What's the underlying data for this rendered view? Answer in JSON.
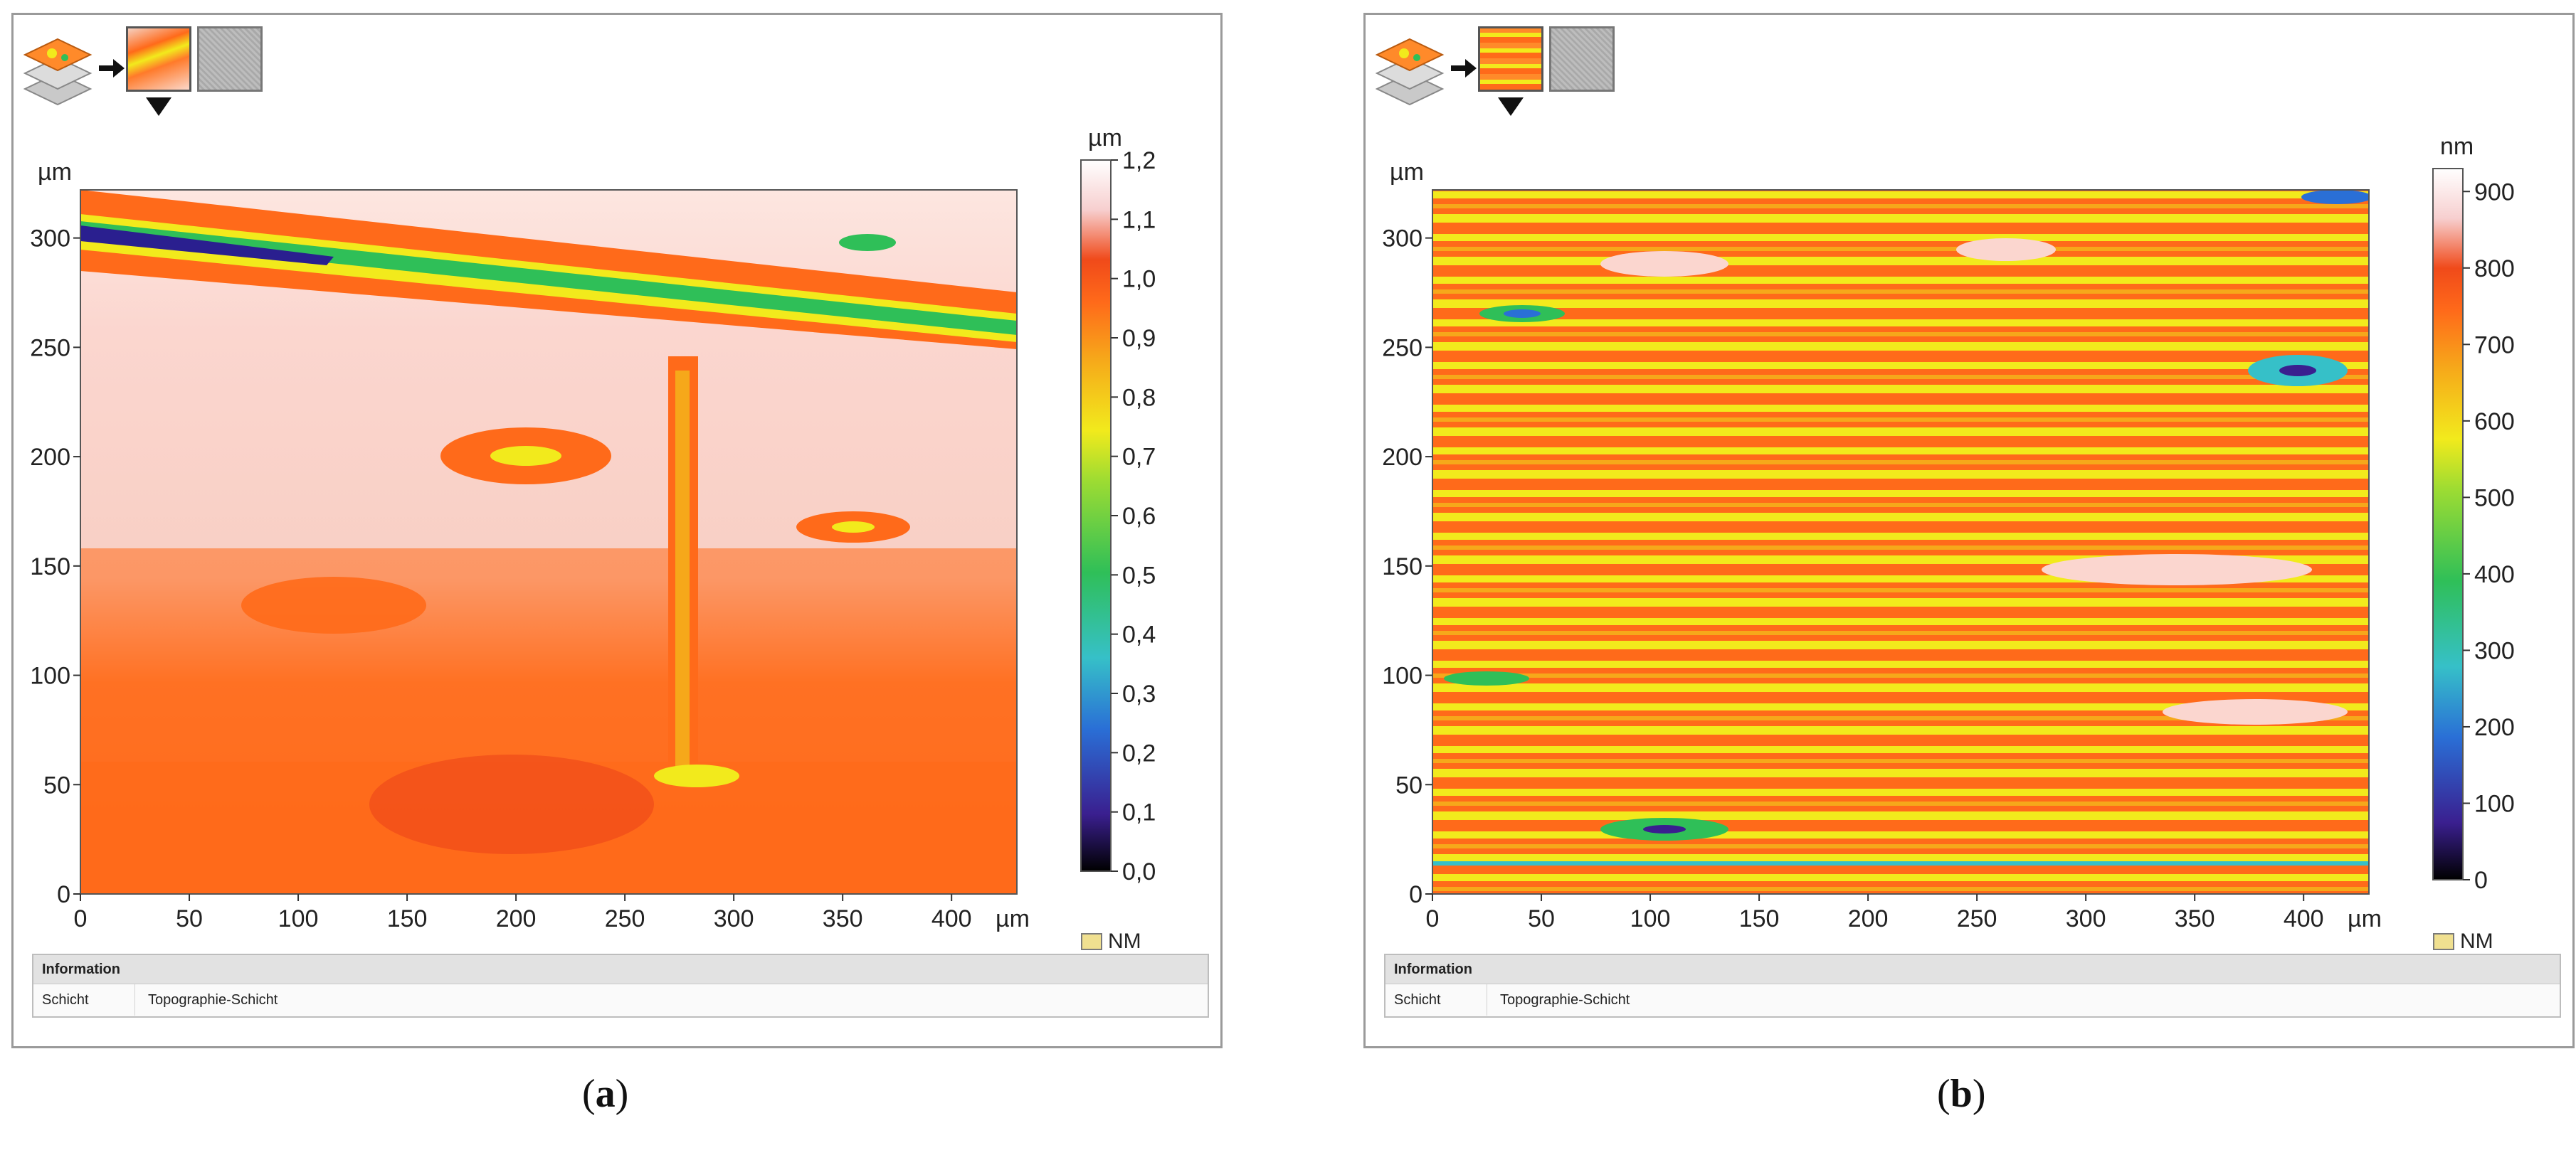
{
  "colors": {
    "scale_stops": [
      "#000000",
      "#3a1f8f",
      "#2a6fd6",
      "#36c0c8",
      "#2fbf58",
      "#9edc32",
      "#f2ea1c",
      "#f6a81a",
      "#ff6a1a",
      "#f04a1a",
      "#f7cfcf",
      "#ffffff"
    ]
  },
  "toolbar": {
    "layer_icon": "layers-icon",
    "arrow_icon": "arrow-right-icon",
    "thumb_topo": "topography-thumbnail",
    "thumb_gray": "grayscale-thumbnail",
    "caret_icon": "dropdown-caret-icon"
  },
  "panels": [
    {
      "caption_label": "a",
      "info": {
        "header": "Information",
        "key": "Schicht",
        "value": "Topographie-Schicht"
      },
      "nm_label": "NM",
      "chart_data": {
        "type": "heatmap",
        "axis_unit_x": "µm",
        "axis_unit_y": "µm",
        "x_ticks": [
          "0",
          "50",
          "100",
          "150",
          "200",
          "250",
          "300",
          "350",
          "400"
        ],
        "y_ticks": [
          "0",
          "50",
          "100",
          "150",
          "200",
          "250",
          "300"
        ],
        "xlim": [
          0,
          430
        ],
        "ylim": [
          0,
          322
        ],
        "colorbar_unit": "µm",
        "colorbar_ticks": [
          "0,0",
          "0,1",
          "0,2",
          "0,3",
          "0,4",
          "0,5",
          "0,6",
          "0,7",
          "0,8",
          "0,9",
          "1,0",
          "1,1",
          "1,2"
        ],
        "colorbar_range": [
          0.0,
          1.2
        ]
      }
    },
    {
      "caption_label": "b",
      "info": {
        "header": "Information",
        "key": "Schicht",
        "value": "Topographie-Schicht"
      },
      "nm_label": "NM",
      "chart_data": {
        "type": "heatmap",
        "axis_unit_x": "µm",
        "axis_unit_y": "µm",
        "x_ticks": [
          "0",
          "50",
          "100",
          "150",
          "200",
          "250",
          "300",
          "350",
          "400"
        ],
        "y_ticks": [
          "0",
          "50",
          "100",
          "150",
          "200",
          "250",
          "300"
        ],
        "xlim": [
          0,
          430
        ],
        "ylim": [
          0,
          322
        ],
        "colorbar_unit": "nm",
        "colorbar_ticks": [
          "0",
          "100",
          "200",
          "300",
          "400",
          "500",
          "600",
          "700",
          "800",
          "900"
        ],
        "colorbar_range": [
          0,
          930
        ]
      }
    }
  ]
}
